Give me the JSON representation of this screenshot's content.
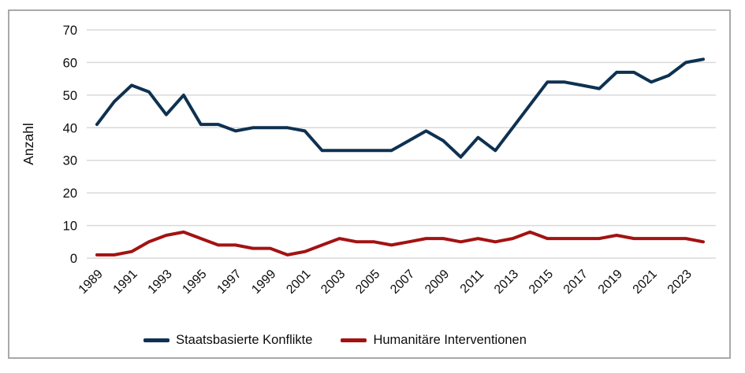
{
  "chart_data": {
    "type": "line",
    "title": "",
    "ylabel": "Anzahl",
    "ylim": [
      0,
      70
    ],
    "yticks": [
      0,
      10,
      20,
      30,
      40,
      50,
      60,
      70
    ],
    "x": [
      1989,
      1990,
      1991,
      1992,
      1993,
      1994,
      1995,
      1996,
      1997,
      1998,
      1999,
      2000,
      2001,
      2002,
      2003,
      2004,
      2005,
      2006,
      2007,
      2008,
      2009,
      2010,
      2011,
      2012,
      2013,
      2014,
      2015,
      2016,
      2017,
      2018,
      2019,
      2020,
      2021,
      2022,
      2023,
      2024
    ],
    "xtick_labels": [
      "1989",
      "1991",
      "1993",
      "1995",
      "1997",
      "1999",
      "2001",
      "2003",
      "2005",
      "2007",
      "2009",
      "2011",
      "2013",
      "2015",
      "2017",
      "2019",
      "2021",
      "2023"
    ],
    "series": [
      {
        "name": "Staatsbasierte Konflikte",
        "color": "#0e3151",
        "values": [
          41,
          48,
          53,
          51,
          44,
          50,
          41,
          41,
          39,
          40,
          40,
          40,
          39,
          33,
          33,
          33,
          33,
          33,
          36,
          39,
          36,
          31,
          37,
          33,
          40,
          47,
          54,
          54,
          53,
          52,
          57,
          57,
          54,
          56,
          60,
          61
        ]
      },
      {
        "name": "Humanitäre Interventionen",
        "color": "#a31212",
        "values": [
          1,
          1,
          2,
          5,
          7,
          8,
          6,
          4,
          4,
          3,
          3,
          1,
          2,
          4,
          6,
          5,
          5,
          4,
          5,
          6,
          6,
          5,
          6,
          5,
          6,
          8,
          6,
          6,
          6,
          6,
          7,
          6,
          6,
          6,
          6,
          5
        ]
      }
    ],
    "grid": "horizontal",
    "grid_color": "#d9d9d9",
    "legend_position": "bottom",
    "frame_color": "#a9a9a9"
  },
  "legend": {
    "item1": "Staatsbasierte Konflikte",
    "item2": "Humanitäre Interventionen"
  }
}
